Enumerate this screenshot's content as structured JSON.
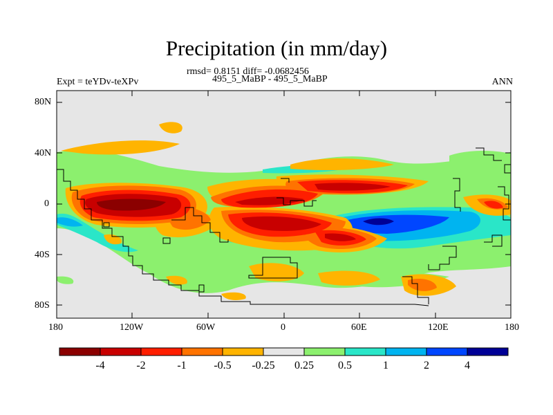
{
  "title": "Precipitation (in mm/day)",
  "stats": "rmsd= 0.8151 diff= -0.0682456",
  "case": "495_5_MaBP - 495_5_MaBP",
  "expt": "Expt = teYDv-teXPv",
  "season": "ANN",
  "lat_labels": [
    "80N",
    "40N",
    "0",
    "40S",
    "80S"
  ],
  "lon_labels": [
    "180",
    "120W",
    "60W",
    "0",
    "60E",
    "120E",
    "180"
  ],
  "colorbar": {
    "colors": [
      "#8b0000",
      "#c80000",
      "#ff1e00",
      "#ff7300",
      "#ffb400",
      "#e6e6e6",
      "#8cf06e",
      "#2ae6c8",
      "#00b4f0",
      "#0046ff",
      "#000096"
    ],
    "labels": [
      "-4",
      "-2",
      "-1",
      "-0.5",
      "-0.25",
      "0.25",
      "0.5",
      "1",
      "2",
      "4"
    ]
  }
}
